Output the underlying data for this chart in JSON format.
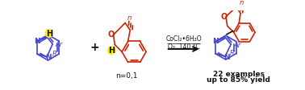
{
  "bg_color": "#ffffff",
  "blue": "#4444cc",
  "red": "#cc2200",
  "yellow": "#ffee00",
  "black": "#111111",
  "cond1": "CoCl₂•6H₂O",
  "cond2": "O₂, 140 °C",
  "label_n01": "n=0,1",
  "label_examples": "22 examples",
  "label_yield": "up to 85% yield",
  "fig_width": 3.78,
  "fig_height": 1.12,
  "dpi": 100
}
